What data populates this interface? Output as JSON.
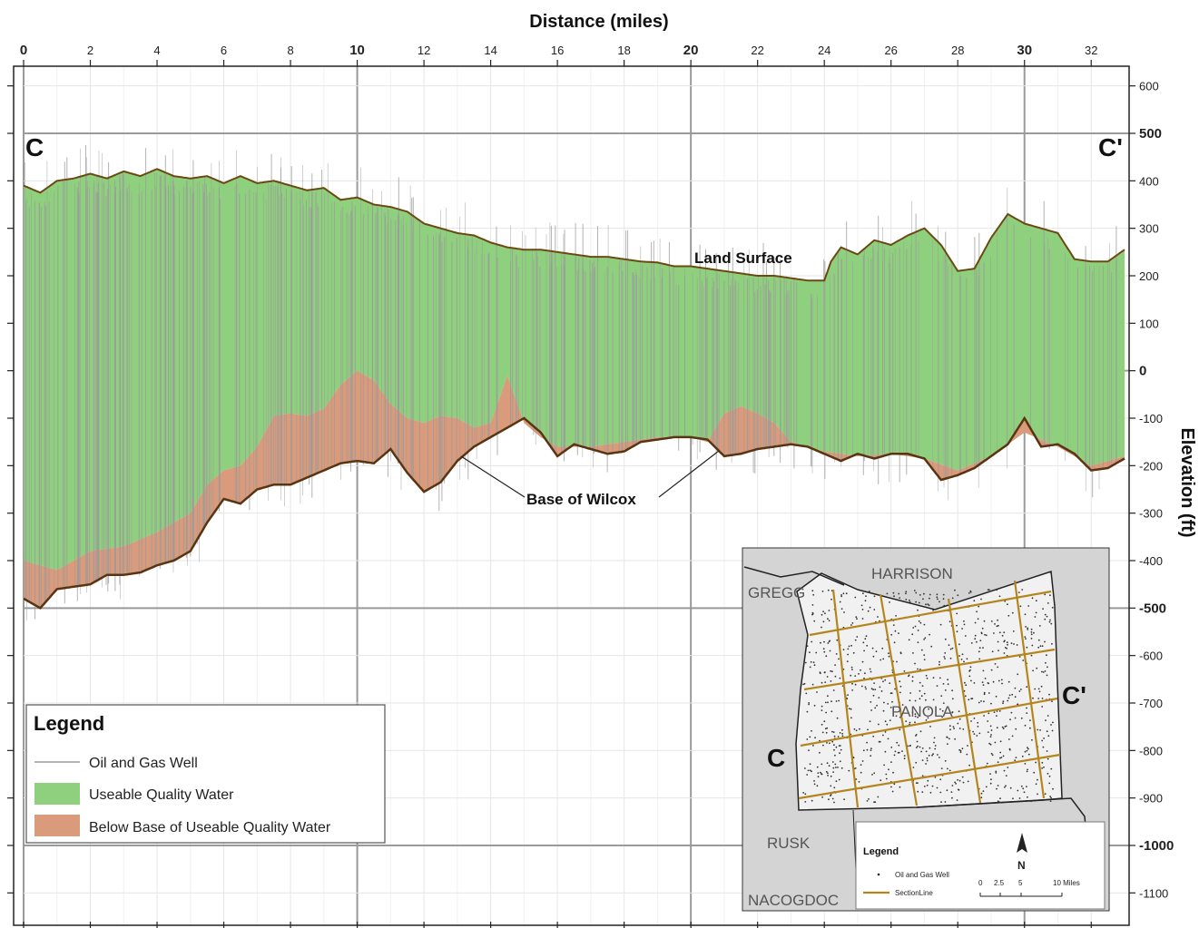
{
  "chart_data": {
    "type": "area",
    "xlabel": "Distance (miles)",
    "ylabel": "Elevation (ft)",
    "xlim": [
      0,
      33
    ],
    "ylim": [
      -1150,
      650
    ],
    "x_ticks": [
      0,
      2,
      4,
      6,
      8,
      10,
      12,
      14,
      16,
      18,
      20,
      22,
      24,
      26,
      28,
      30,
      32
    ],
    "x_major_ticks": [
      0,
      10,
      20,
      30
    ],
    "y_ticks": [
      600,
      500,
      400,
      300,
      200,
      100,
      0,
      -100,
      -200,
      -300,
      -400,
      -500,
      -600,
      -700,
      -800,
      -900,
      -1000,
      -1100
    ],
    "y_major_ticks": [
      500,
      0,
      -500,
      -1000
    ],
    "section_start_label": "C",
    "section_end_label": "C'",
    "land_surface_label": "Land Surface",
    "base_wilcox_label": "Base of Wilcox",
    "series": [
      {
        "name": "Land Surface",
        "x": [
          0,
          0.5,
          1,
          1.5,
          2,
          2.5,
          3,
          3.5,
          4,
          4.5,
          5,
          5.5,
          6,
          6.5,
          7,
          7.5,
          8,
          8.5,
          9,
          9.5,
          10,
          10.5,
          11,
          11.5,
          12,
          12.5,
          13,
          13.5,
          14,
          14.5,
          15,
          15.5,
          16,
          16.5,
          17,
          17.5,
          18,
          18.5,
          19,
          19.5,
          20,
          20.5,
          21,
          21.5,
          22,
          22.5,
          23,
          23.5,
          24,
          24.2,
          24.5,
          25,
          25.5,
          26,
          26.5,
          27,
          27.5,
          28,
          28.5,
          29,
          29.5,
          30,
          30.5,
          31,
          31.5,
          32,
          32.5,
          33
        ],
        "y": [
          390,
          375,
          400,
          405,
          415,
          405,
          420,
          410,
          425,
          410,
          405,
          410,
          395,
          410,
          395,
          400,
          390,
          380,
          385,
          360,
          365,
          350,
          345,
          335,
          310,
          300,
          290,
          285,
          270,
          260,
          255,
          255,
          250,
          245,
          240,
          240,
          235,
          230,
          228,
          220,
          220,
          215,
          210,
          205,
          200,
          200,
          195,
          190,
          190,
          230,
          260,
          245,
          275,
          265,
          285,
          300,
          265,
          210,
          215,
          280,
          330,
          310,
          300,
          290,
          235,
          230,
          230,
          255
        ]
      },
      {
        "name": "Base of Useable Quality Water",
        "x": [
          0,
          1,
          2,
          3,
          4,
          5,
          5.5,
          6,
          6.5,
          7,
          7.5,
          8,
          8.5,
          9,
          9.5,
          10,
          10.5,
          11,
          11.5,
          12,
          12.5,
          13,
          13.5,
          14,
          14.5,
          15,
          15.5,
          16,
          17,
          18,
          19,
          20,
          20.5,
          21,
          21.5,
          22,
          22.5,
          23,
          23.5,
          24,
          25,
          26,
          27,
          28,
          29,
          30,
          31,
          32,
          33
        ],
        "y": [
          -400,
          -420,
          -380,
          -370,
          -340,
          -300,
          -240,
          -210,
          -200,
          -160,
          -95,
          -90,
          -95,
          -80,
          -30,
          0,
          -20,
          -70,
          -100,
          -110,
          -95,
          -100,
          -120,
          -110,
          -10,
          -110,
          -140,
          -160,
          -160,
          -150,
          -140,
          -140,
          -150,
          -90,
          -75,
          -90,
          -110,
          -150,
          -160,
          -170,
          -180,
          -175,
          -185,
          -210,
          -180,
          -130,
          -160,
          -200,
          -180
        ]
      },
      {
        "name": "Base of Wilcox",
        "x": [
          0,
          0.5,
          1,
          1.5,
          2,
          2.5,
          3,
          3.5,
          4,
          4.5,
          5,
          5.5,
          6,
          6.5,
          7,
          7.5,
          8,
          8.5,
          9,
          9.5,
          10,
          10.5,
          11,
          11.5,
          12,
          12.5,
          13,
          13.5,
          14,
          14.5,
          15,
          15.5,
          16,
          16.5,
          17,
          17.5,
          18,
          18.5,
          19,
          19.5,
          20,
          20.5,
          21,
          21.5,
          22,
          22.5,
          23,
          23.5,
          24,
          24.5,
          25,
          25.5,
          26,
          26.5,
          27,
          27.5,
          28,
          28.5,
          29,
          29.5,
          30,
          30.5,
          31,
          31.5,
          32,
          32.5,
          33
        ],
        "y": [
          -480,
          -500,
          -460,
          -455,
          -450,
          -430,
          -430,
          -425,
          -410,
          -400,
          -380,
          -320,
          -270,
          -280,
          -250,
          -240,
          -240,
          -225,
          -210,
          -195,
          -190,
          -195,
          -165,
          -215,
          -255,
          -235,
          -190,
          -160,
          -140,
          -120,
          -100,
          -130,
          -180,
          -155,
          -165,
          -175,
          -170,
          -150,
          -145,
          -140,
          -140,
          -145,
          -180,
          -175,
          -165,
          -160,
          -155,
          -160,
          -175,
          -190,
          -175,
          -185,
          -175,
          -175,
          -185,
          -230,
          -220,
          -205,
          -180,
          -155,
          -100,
          -160,
          -155,
          -175,
          -210,
          -205,
          -185
        ]
      }
    ],
    "legend": {
      "title": "Legend",
      "position": "bottom-left",
      "items": [
        {
          "label": "Oil and Gas Well",
          "type": "line",
          "color": "#9a9a9a"
        },
        {
          "label": "Useable Quality Water",
          "type": "fill",
          "color": "#8fd07f"
        },
        {
          "label": "Below Base of Useable Quality Water",
          "type": "fill",
          "color": "#d99b7c"
        }
      ]
    },
    "grid": true,
    "inset_map": {
      "counties": [
        "HARRISON",
        "GREGG",
        "PANOLA",
        "RUSK",
        "NACOGDOC"
      ],
      "section_start_label": "C",
      "section_end_label": "C'",
      "legend_title": "Legend",
      "legend_items": [
        "Oil and Gas Well",
        "SectionLine"
      ],
      "scale_labels": [
        "0",
        "2.5",
        "5",
        "10 Miles"
      ],
      "north_label": "N"
    },
    "colors": {
      "useable": "#8fd07f",
      "below": "#d99b7c",
      "surface_line": "#6b4a12",
      "wilcox_line": "#5a3410",
      "well_line": "#9a9a9a",
      "section_line": "#b5851d"
    }
  }
}
